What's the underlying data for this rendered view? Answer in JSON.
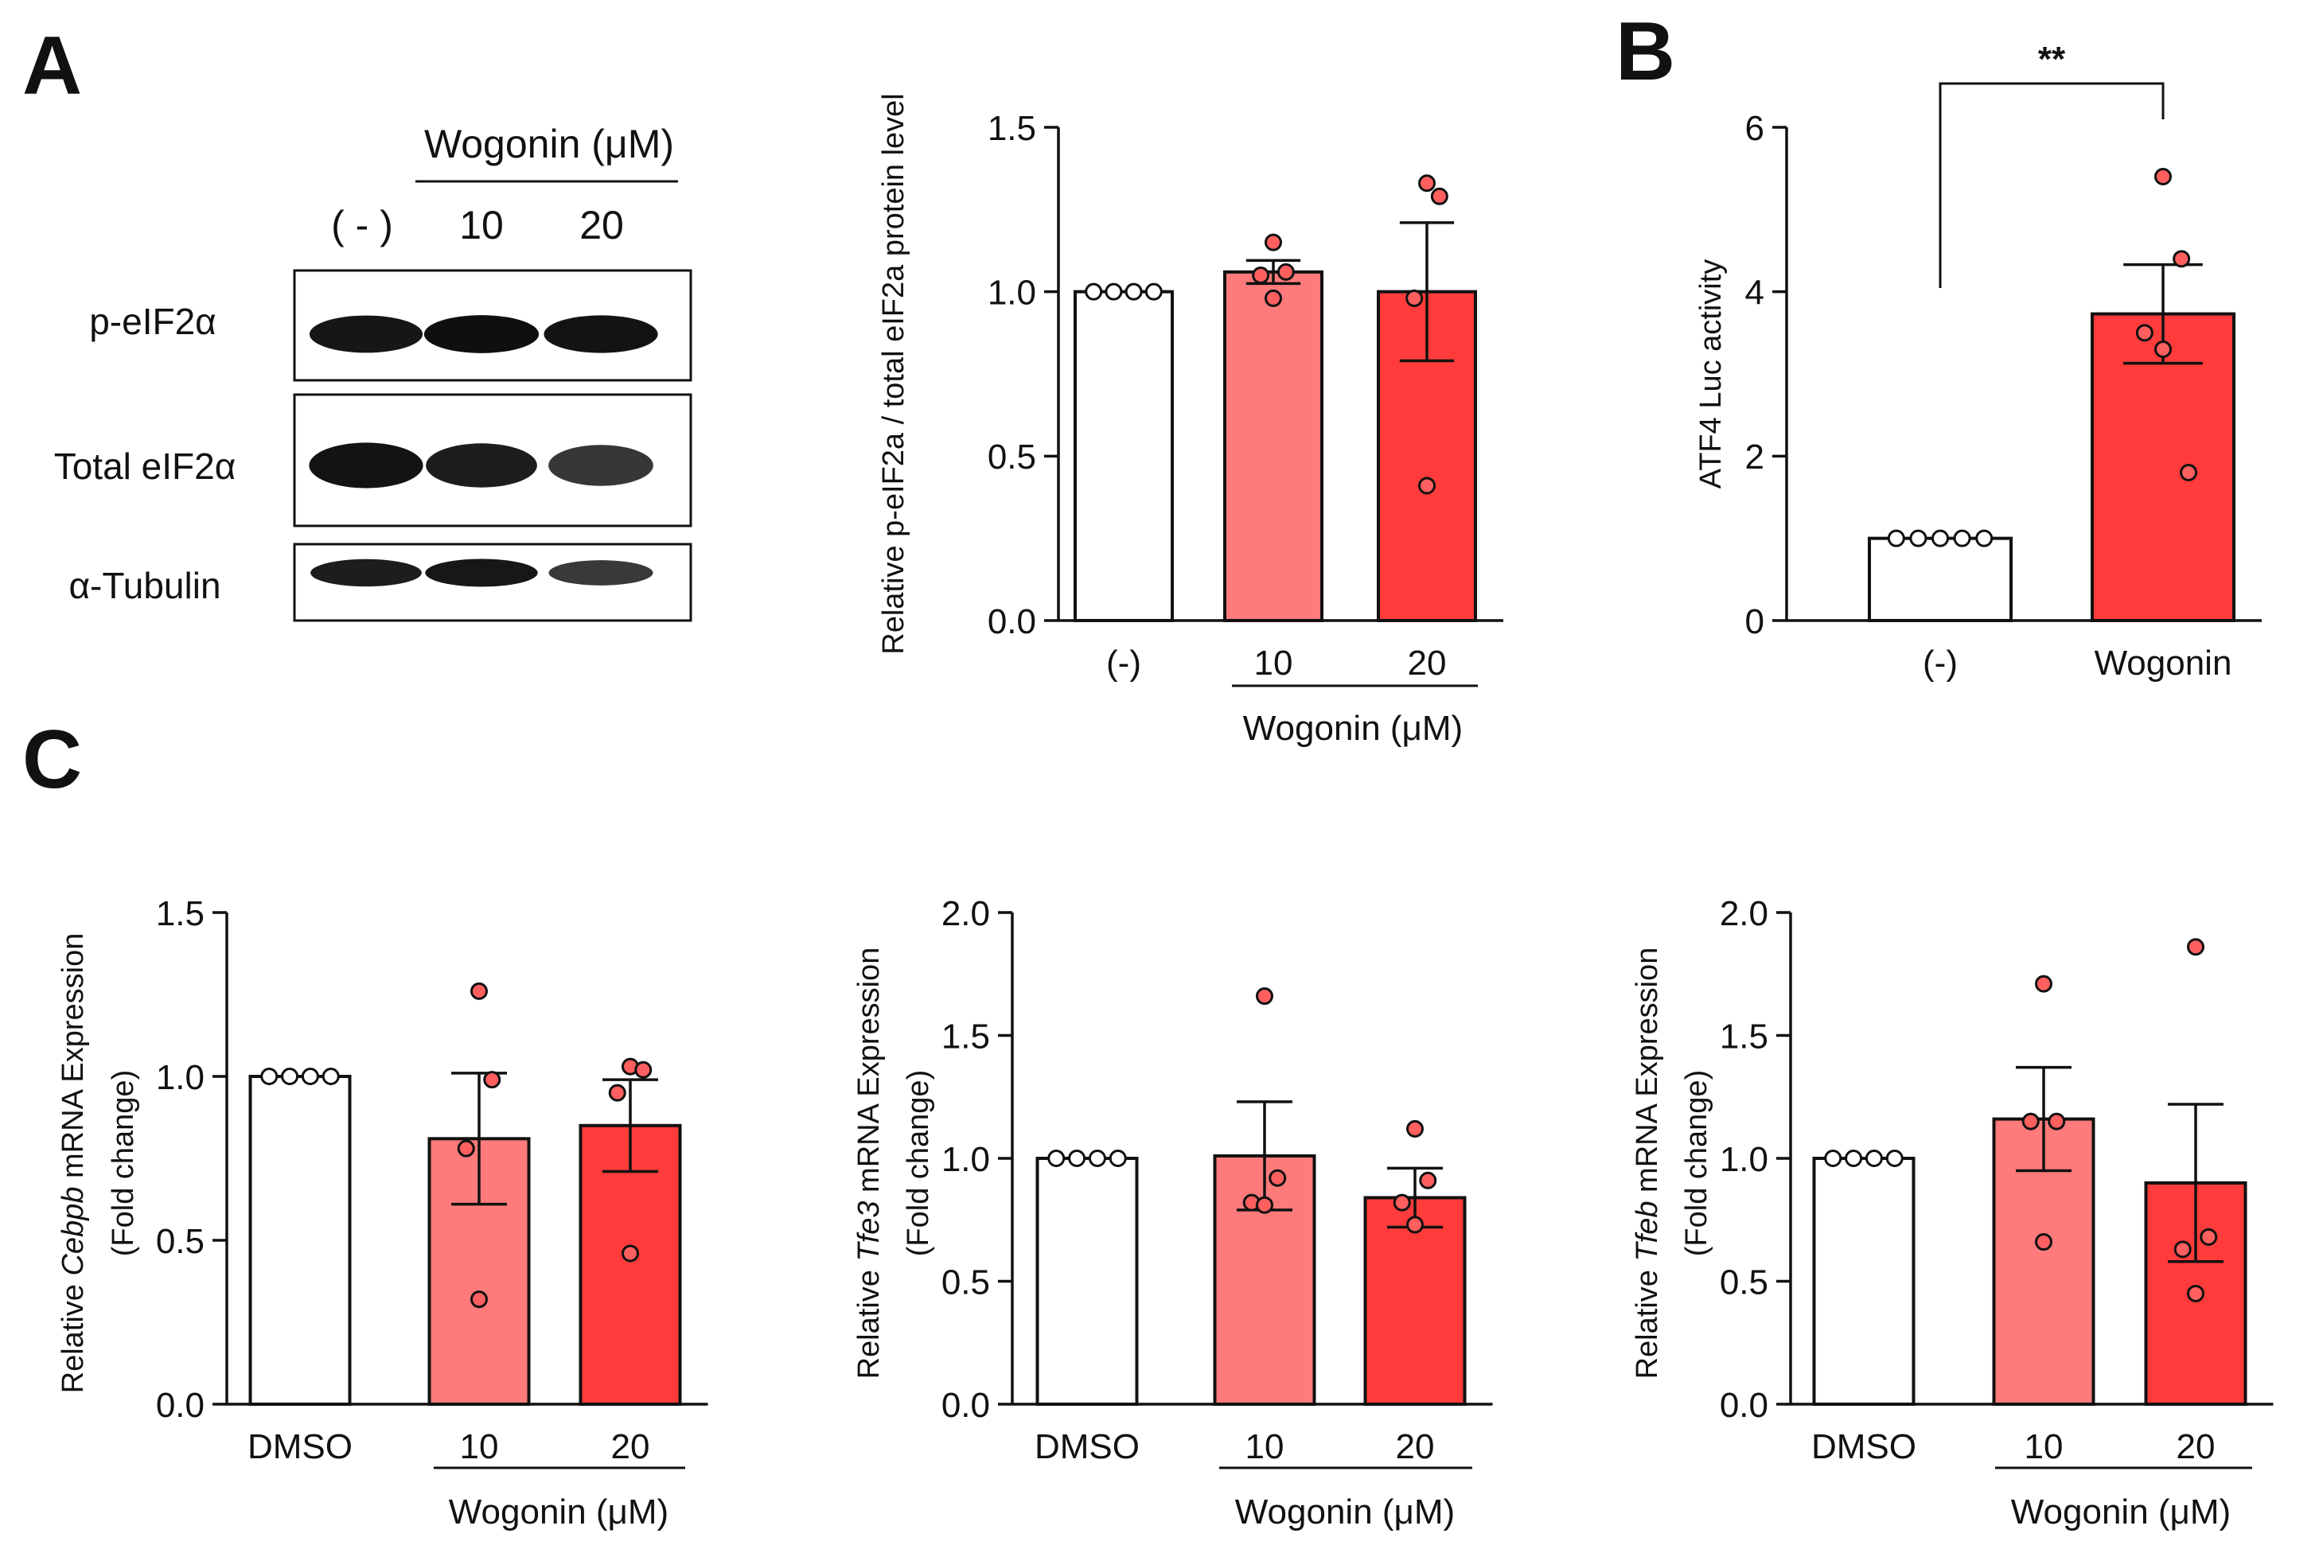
{
  "colors": {
    "axis": "#111111",
    "bar_dmso": "#ffffff",
    "bar_10": "#ff7b7b",
    "bar_20": "#ff3b3b",
    "dot_fill": "#ff5f5f",
    "band": "#0d0d0d"
  },
  "panels": {
    "a": "A",
    "b": "B",
    "c": "C"
  },
  "blot": {
    "header": "Wogonin (μM)",
    "lanes": [
      "( - )",
      "10",
      "20"
    ],
    "rows": [
      {
        "label": "p-eIF2α",
        "intensities": [
          0.92,
          0.98,
          0.95
        ]
      },
      {
        "label": "Total eIF2α",
        "intensities": [
          0.95,
          0.85,
          0.62
        ]
      },
      {
        "label": "α-Tubulin",
        "intensities": [
          0.85,
          0.9,
          0.6
        ]
      }
    ]
  },
  "chart_data": [
    {
      "id": "A_quant",
      "type": "bar",
      "categories": [
        "(-)",
        "10",
        "20"
      ],
      "values": [
        1.0,
        1.06,
        1.0
      ],
      "sem": [
        0,
        0.035,
        0.21
      ],
      "points": [
        [
          1.0,
          1.0,
          1.0,
          1.0
        ],
        [
          1.15,
          1.06,
          1.05,
          0.98
        ],
        [
          1.33,
          1.29,
          0.98,
          0.41
        ]
      ],
      "ylabel": "Relative p-eIF2a / total eIF2a protein level",
      "ylim": [
        0,
        1.5
      ],
      "yticks": [
        "0.0",
        "0.5",
        "1.0",
        "1.5"
      ],
      "group_label": "Wogonin (μM)"
    },
    {
      "id": "B",
      "type": "bar",
      "categories": [
        "(-)",
        "Wogonin"
      ],
      "values": [
        1.0,
        3.73
      ],
      "sem": [
        0,
        0.6
      ],
      "points": [
        [
          1.0,
          1.0,
          1.0,
          1.0,
          1.0
        ],
        [
          5.4,
          4.4,
          3.5,
          3.3,
          1.8
        ]
      ],
      "ylabel": "ATF4 Luc activity",
      "ylim": [
        0,
        6
      ],
      "yticks": [
        "0",
        "2",
        "4",
        "6"
      ],
      "significance": "**"
    },
    {
      "id": "C1",
      "type": "bar",
      "categories": [
        "DMSO",
        "10",
        "20"
      ],
      "values": [
        1.0,
        0.81,
        0.85
      ],
      "sem": [
        0,
        0.2,
        0.14
      ],
      "points": [
        [
          1.0,
          1.0,
          1.0,
          1.0
        ],
        [
          1.26,
          0.99,
          0.78,
          0.32
        ],
        [
          1.03,
          1.02,
          0.95,
          0.46
        ]
      ],
      "ylabel_pre": "Relative ",
      "ylabel_gene": "Cebpb",
      "ylabel_post": " mRNA Expression",
      "ylabel2": "(Fold change)",
      "ylim": [
        0,
        1.5
      ],
      "yticks": [
        "0.0",
        "0.5",
        "1.0",
        "1.5"
      ],
      "group_label": "Wogonin (μM)"
    },
    {
      "id": "C2",
      "type": "bar",
      "categories": [
        "DMSO",
        "10",
        "20"
      ],
      "values": [
        1.0,
        1.01,
        0.84
      ],
      "sem": [
        0,
        0.22,
        0.12
      ],
      "points": [
        [
          1.0,
          1.0,
          1.0,
          1.0
        ],
        [
          1.66,
          0.92,
          0.82,
          0.81
        ],
        [
          1.12,
          0.91,
          0.82,
          0.73
        ]
      ],
      "ylabel_pre": "Relative ",
      "ylabel_gene": "Tfe3",
      "ylabel_post": " mRNA Expression",
      "ylabel2": "(Fold change)",
      "ylim": [
        0,
        2.0
      ],
      "yticks": [
        "0.0",
        "0.5",
        "1.0",
        "1.5",
        "2.0"
      ],
      "group_label": "Wogonin (μM)"
    },
    {
      "id": "C3",
      "type": "bar",
      "categories": [
        "DMSO",
        "10",
        "20"
      ],
      "values": [
        1.0,
        1.16,
        0.9
      ],
      "sem": [
        0,
        0.21,
        0.32
      ],
      "points": [
        [
          1.0,
          1.0,
          1.0,
          1.0
        ],
        [
          1.71,
          1.15,
          1.15,
          0.66
        ],
        [
          1.86,
          0.68,
          0.63,
          0.45
        ]
      ],
      "ylabel_pre": "Relative ",
      "ylabel_gene": "Tfeb",
      "ylabel_post": " mRNA Expression",
      "ylabel2": "(Fold change)",
      "ylim": [
        0,
        2.0
      ],
      "yticks": [
        "0.0",
        "0.5",
        "1.0",
        "1.5",
        "2.0"
      ],
      "group_label": "Wogonin (μM)"
    }
  ]
}
